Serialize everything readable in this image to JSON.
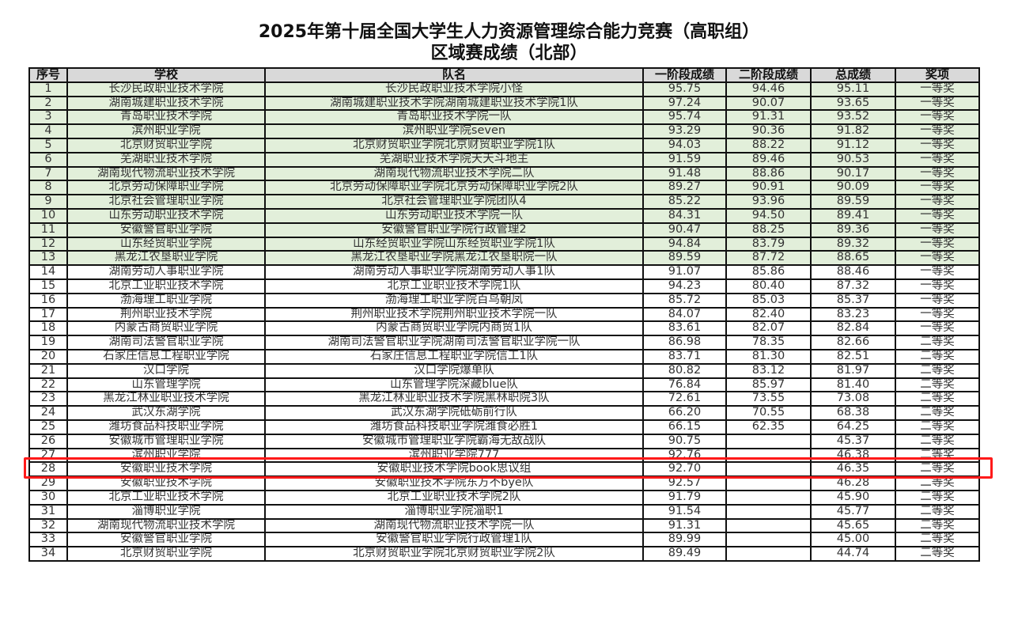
{
  "title": {
    "line1": "2025年第十届全国大学生人力资源管理综合能力竞赛（高职组）",
    "line2": "区域赛成绩（北部）"
  },
  "table": {
    "headers": [
      "序号",
      "学校",
      "队名",
      "一阶段成绩",
      "二阶段成绩",
      "总成绩",
      "奖项"
    ],
    "highlight_color": "#ff1a1a",
    "highlight_color_row_green": "#e2efda",
    "highlighted_row": 25,
    "green_rows_through": 13,
    "rows": [
      [
        "1",
        "长沙民政职业技术学院",
        "长沙民政职业技术学院小怪",
        "95.75",
        "94.46",
        "95.11",
        "一等奖"
      ],
      [
        "2",
        "湖南城建职业技术学院",
        "湖南城建职业技术学院湖南城建职业技术学院1队",
        "97.24",
        "90.07",
        "93.65",
        "一等奖"
      ],
      [
        "3",
        "青岛职业技术学院",
        "青岛职业技术学院一队",
        "95.74",
        "91.31",
        "93.52",
        "一等奖"
      ],
      [
        "4",
        "滨州职业学院",
        "滨州职业学院seven",
        "93.29",
        "90.36",
        "91.82",
        "一等奖"
      ],
      [
        "5",
        "北京财贸职业学院",
        "北京财贸职业学院北京财贸职业学院1队",
        "94.03",
        "88.22",
        "91.12",
        "一等奖"
      ],
      [
        "6",
        "芜湖职业技术学院",
        "芜湖职业技术学院天天斗地主",
        "91.59",
        "89.46",
        "90.53",
        "一等奖"
      ],
      [
        "7",
        "湖南现代物流职业技术学院",
        "湖南现代物流职业技术学院二队",
        "91.48",
        "88.86",
        "90.17",
        "一等奖"
      ],
      [
        "8",
        "北京劳动保障职业学院",
        "北京劳动保障职业学院北京劳动保障职业学院2队",
        "89.27",
        "90.91",
        "90.09",
        "一等奖"
      ],
      [
        "9",
        "北京社会管理职业学院",
        "北京社会管理职业学院团队4",
        "85.22",
        "93.96",
        "89.59",
        "一等奖"
      ],
      [
        "10",
        "山东劳动职业技术学院",
        "山东劳动职业技术学院一队",
        "84.31",
        "94.50",
        "89.41",
        "一等奖"
      ],
      [
        "11",
        "安徽警官职业学院",
        "安徽警官职业学院行政管理2",
        "90.47",
        "88.25",
        "89.36",
        "一等奖"
      ],
      [
        "12",
        "山东经贸职业学院",
        "山东经贸职业学院山东经贸职业学院1队",
        "94.84",
        "83.79",
        "89.32",
        "一等奖"
      ],
      [
        "13",
        "黑龙江农垦职业学院",
        "黑龙江农垦职业学院黑龙江农垦职院一队",
        "89.59",
        "87.72",
        "88.65",
        "一等奖"
      ],
      [
        "14",
        "湖南劳动人事职业学院",
        "湖南劳动人事职业学院湖南劳动人事1队",
        "91.07",
        "85.86",
        "88.46",
        "一等奖"
      ],
      [
        "15",
        "北京工业职业技术学院",
        "北京工业职业技术学院1队",
        "94.23",
        "80.40",
        "87.32",
        "一等奖"
      ],
      [
        "16",
        "渤海理工职业学院",
        "渤海理工职业学院百鸟朝凤",
        "85.72",
        "85.03",
        "85.37",
        "一等奖"
      ],
      [
        "17",
        "荆州职业技术学院",
        "荆州职业技术学院荆州职业技术学院一队",
        "84.07",
        "82.40",
        "83.23",
        "一等奖"
      ],
      [
        "18",
        "内蒙古商贸职业学院",
        "内蒙古商贸职业学院内商贸1队",
        "83.61",
        "82.07",
        "82.84",
        "一等奖"
      ],
      [
        "19",
        "湖南司法警官职业学院",
        "湖南司法警官职业学院湖南司法警官职业学院一队",
        "86.98",
        "78.35",
        "82.66",
        "二等奖"
      ],
      [
        "20",
        "石家庄信息工程职业学院",
        "石家庄信息工程职业学院信工1队",
        "83.71",
        "81.30",
        "82.51",
        "二等奖"
      ],
      [
        "21",
        "汉口学院",
        "汉口学院爆单队",
        "80.82",
        "83.12",
        "81.97",
        "二等奖"
      ],
      [
        "22",
        "山东管理学院",
        "山东管理学院深藏blue队",
        "76.84",
        "85.97",
        "81.40",
        "二等奖"
      ],
      [
        "23",
        "黑龙江林业职业技术学院",
        "黑龙江林业职业技术学院黑林职院3队",
        "72.61",
        "73.55",
        "73.08",
        "二等奖"
      ],
      [
        "24",
        "武汉东湖学院",
        "武汉东湖学院砥砺前行队",
        "66.20",
        "70.55",
        "68.38",
        "二等奖"
      ],
      [
        "25",
        "潍坊食品科技职业学院",
        "潍坊食品科技职业学院潍食必胜1",
        "66.15",
        "62.35",
        "64.25",
        "二等奖"
      ],
      [
        "26",
        "安徽城市管理职业学院",
        "安徽城市管理职业学院霸海无敌战队",
        "90.75",
        "",
        "45.37",
        "二等奖"
      ],
      [
        "27",
        "滨州职业学院",
        "滨州职业学院777",
        "92.76",
        "",
        "46.38",
        "二等奖"
      ],
      [
        "28",
        "安徽职业技术学院",
        "安徽职业技术学院book思议组",
        "92.70",
        "",
        "46.35",
        "二等奖"
      ],
      [
        "29",
        "安徽职业技术学院",
        "安徽职业技术学院东方不bye队",
        "92.57",
        "",
        "46.28",
        "二等奖"
      ],
      [
        "30",
        "北京工业职业技术学院",
        "北京工业职业技术学院2队",
        "91.79",
        "",
        "45.90",
        "二等奖"
      ],
      [
        "31",
        "淄博职业学院",
        "淄博职业学院淄职1",
        "91.54",
        "",
        "45.77",
        "二等奖"
      ],
      [
        "32",
        "湖南现代物流职业技术学院",
        "湖南现代物流职业技术学院一队",
        "91.31",
        "",
        "45.65",
        "二等奖"
      ],
      [
        "33",
        "安徽警官职业学院",
        "安徽警官职业学院行政管理1队",
        "89.99",
        "",
        "45.00",
        "二等奖"
      ],
      [
        "34",
        "北京财贸职业学院",
        "北京财贸职业学院北京财贸职业学院2队",
        "89.49",
        "",
        "44.74",
        "二等奖"
      ]
    ]
  }
}
